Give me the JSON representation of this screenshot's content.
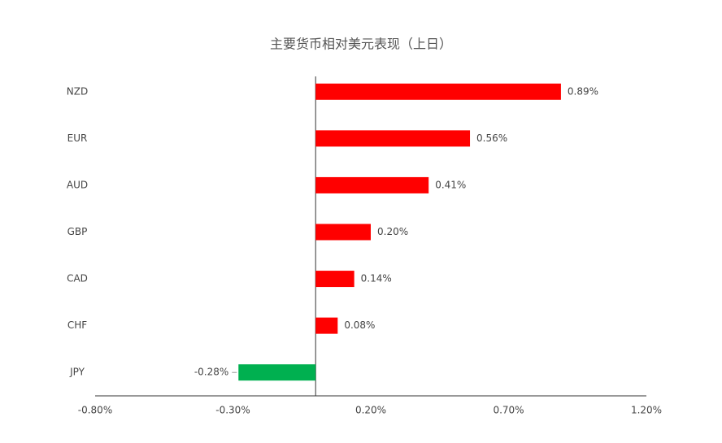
{
  "chart_data": {
    "type": "bar",
    "orientation": "horizontal",
    "title": "主要货币相对美元表现（上日）",
    "categories": [
      "NZD",
      "EUR",
      "AUD",
      "GBP",
      "CAD",
      "CHF",
      "JPY"
    ],
    "values": [
      0.89,
      0.56,
      0.41,
      0.2,
      0.14,
      0.08,
      -0.28
    ],
    "value_labels": [
      "0.89%",
      "0.56%",
      "0.41%",
      "0.20%",
      "0.14%",
      "0.08%",
      "-0.28%"
    ],
    "colors": [
      "#ff0000",
      "#ff0000",
      "#ff0000",
      "#ff0000",
      "#ff0000",
      "#ff0000",
      "#00b050"
    ],
    "xlim": [
      -0.8,
      1.2
    ],
    "xticks": [
      {
        "value": -0.8,
        "label": "-0.80%"
      },
      {
        "value": -0.3,
        "label": "-0.30%"
      },
      {
        "value": 0.2,
        "label": "0.20%"
      },
      {
        "value": 0.7,
        "label": "0.70%"
      },
      {
        "value": 1.2,
        "label": "1.20%"
      }
    ],
    "grid": false
  }
}
